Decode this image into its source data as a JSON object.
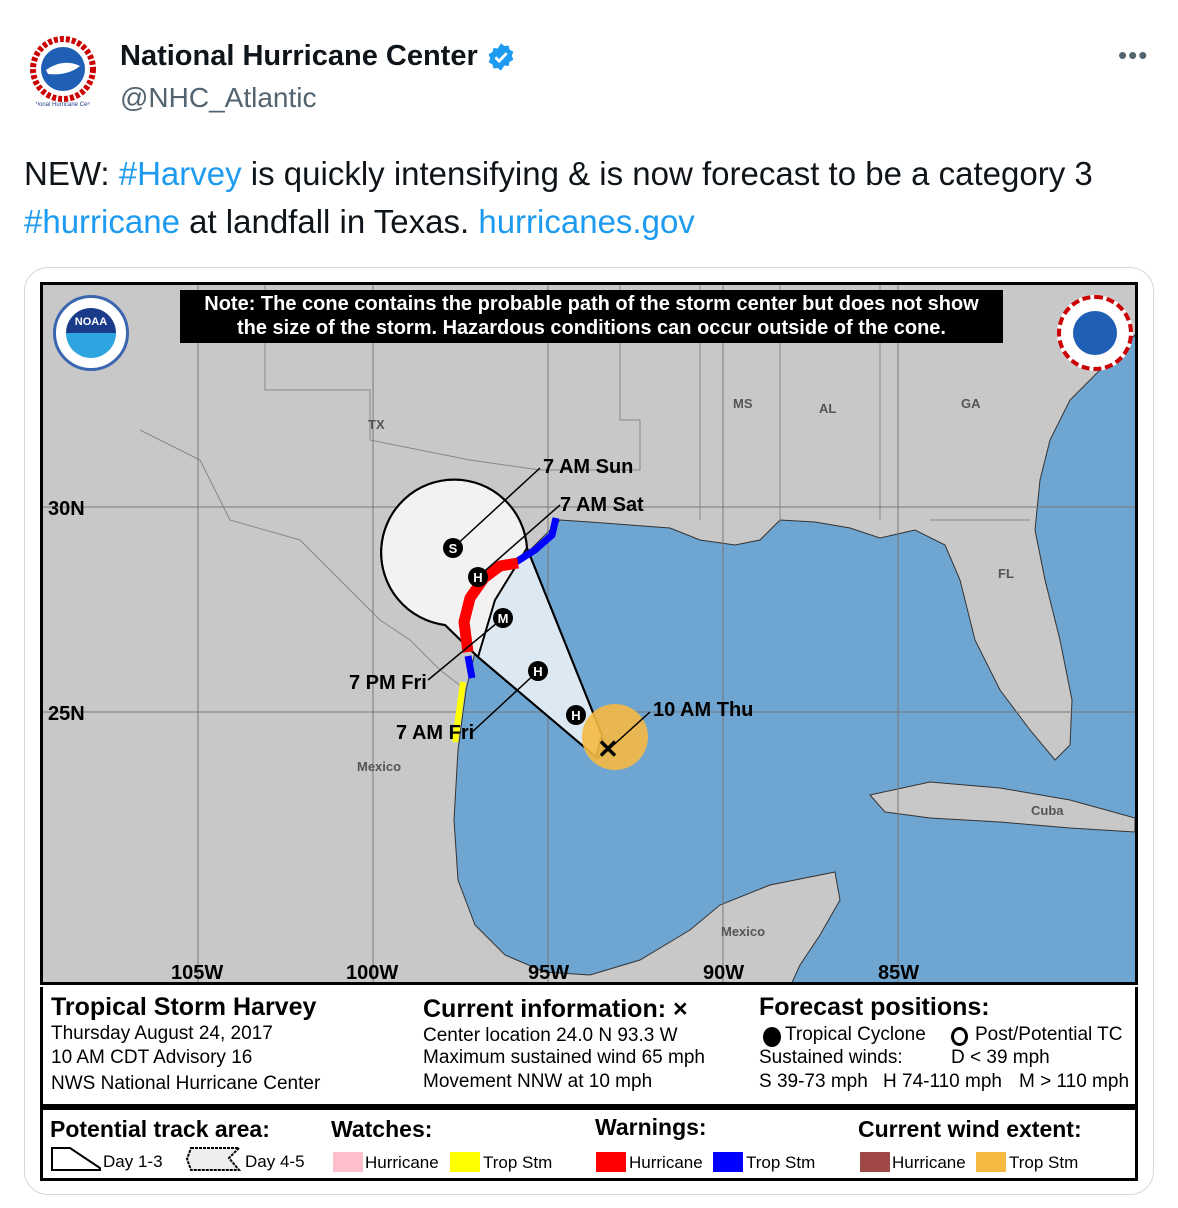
{
  "account": {
    "name": "National Hurricane Center",
    "handle": "@NHC_Atlantic",
    "verified": true,
    "avatar_text": "National Hurricane Center"
  },
  "more_icon": "more-horizontal-icon",
  "tweet": {
    "prefix": "NEW: ",
    "tag1": "#Harvey",
    "mid": " is quickly intensifying & is now forecast to be a category 3 ",
    "tag2": "#hurricane",
    "suffix": " at landfall in Texas. ",
    "link": "hurricanes.gov"
  },
  "map": {
    "note_line1": "Note: The cone contains the probable path of the storm center but does not show",
    "note_line2": "the size of the storm. Hazardous conditions can occur outside of the cone.",
    "logo_left": "NOAA",
    "logo_right": "NATIONAL WEATHER SERVICE",
    "lat_labels": [
      "30N",
      "25N"
    ],
    "lon_labels": [
      "105W",
      "100W",
      "95W",
      "90W",
      "85W"
    ],
    "places": [
      "TX",
      "MS",
      "AL",
      "GA",
      "FL",
      "Mexico",
      "Mexico",
      "Cuba"
    ],
    "positions": [
      "S",
      "H",
      "M",
      "H",
      "H"
    ],
    "times": [
      "7 AM Sun",
      "7 AM Sat",
      "7 PM Fri",
      "7 AM Fri",
      "10 AM Thu"
    ],
    "colors": {
      "land": "#c8c8c8",
      "water": "#6fa5d1",
      "cone_day13": "#dce8f2",
      "cone_day45": "#f2f2f2",
      "hurricane_warning": "#ff0000",
      "trop_storm_warning": "#0000ff",
      "trop_storm_watch": "#ffff00",
      "hurricane_watch": "#ffc0cb",
      "trop_storm_wind": "#f5b942",
      "hurricane_wind": "#a04848"
    }
  },
  "info": {
    "storm": "Tropical Storm Harvey",
    "date": "Thursday August 24, 2017",
    "advisory": "10 AM CDT Advisory 16",
    "agency": "NWS National Hurricane Center",
    "current_title": "Current information: ×",
    "center": "Center location 24.0 N 93.3 W",
    "wind": "Maximum sustained wind 65 mph",
    "movement": "Movement NNW at 10 mph",
    "forecast_title": "Forecast positions:",
    "tc": "Tropical Cyclone",
    "ptc": "Post/Potential TC",
    "sustained": "Sustained winds:",
    "d": "D < 39 mph",
    "s": "S 39-73 mph",
    "hh": "H 74-110 mph",
    "m": "M > 110 mph"
  },
  "legend": {
    "track_title": "Potential track area:",
    "day13": "Day 1-3",
    "day45": "Day 4-5",
    "watches_title": "Watches:",
    "watch_hurricane": "Hurricane",
    "watch_ts": "Trop Stm",
    "warnings_title": "Warnings:",
    "warn_hurricane": "Hurricane",
    "warn_ts": "Trop Stm",
    "wind_title": "Current wind extent:",
    "wind_hurricane": "Hurricane",
    "wind_ts": "Trop Stm"
  }
}
